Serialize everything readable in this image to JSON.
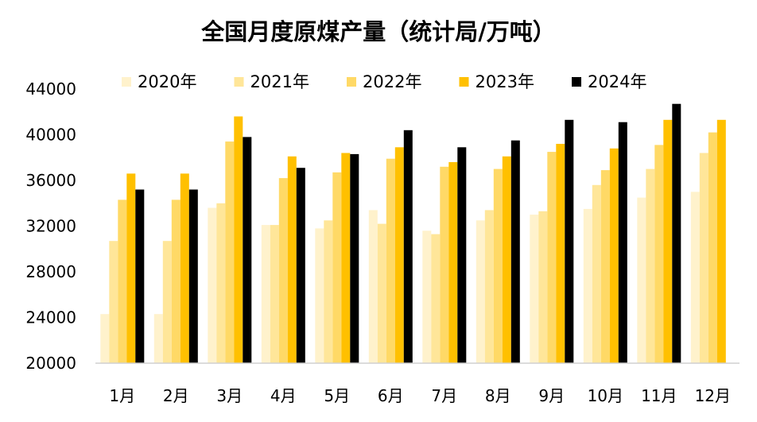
{
  "chart_data": {
    "type": "bar",
    "title": "全国月度原煤产量（统计局/万吨）",
    "xlabel": "",
    "ylabel": "",
    "ylim": [
      20000,
      44000
    ],
    "yticks": [
      20000,
      24000,
      28000,
      32000,
      36000,
      40000,
      44000
    ],
    "grid": false,
    "legend_position": "top",
    "categories": [
      "1月",
      "2月",
      "3月",
      "4月",
      "5月",
      "6月",
      "7月",
      "8月",
      "9月",
      "10月",
      "11月",
      "12月"
    ],
    "series": [
      {
        "name": "2020年",
        "color": "#FFF2CC",
        "values": [
          24300,
          24300,
          33600,
          32100,
          31800,
          33400,
          31600,
          32500,
          33000,
          33500,
          34500,
          35000
        ]
      },
      {
        "name": "2021年",
        "color": "#FFE699",
        "values": [
          30700,
          30700,
          34000,
          32100,
          32500,
          32200,
          31300,
          33400,
          33300,
          35600,
          37000,
          38400
        ]
      },
      {
        "name": "2022年",
        "color": "#FFD966",
        "values": [
          34300,
          34300,
          39400,
          36200,
          36700,
          37900,
          37200,
          37000,
          38500,
          36900,
          39100,
          40200
        ]
      },
      {
        "name": "2023年",
        "color": "#FFC000",
        "values": [
          36600,
          36600,
          41600,
          38100,
          38400,
          38900,
          37600,
          38100,
          39200,
          38800,
          41300,
          41300
        ]
      },
      {
        "name": "2024年",
        "color": "#000000",
        "values": [
          35200,
          35200,
          39800,
          37100,
          38300,
          40400,
          38900,
          39500,
          41300,
          41100,
          42700,
          null
        ]
      }
    ]
  }
}
